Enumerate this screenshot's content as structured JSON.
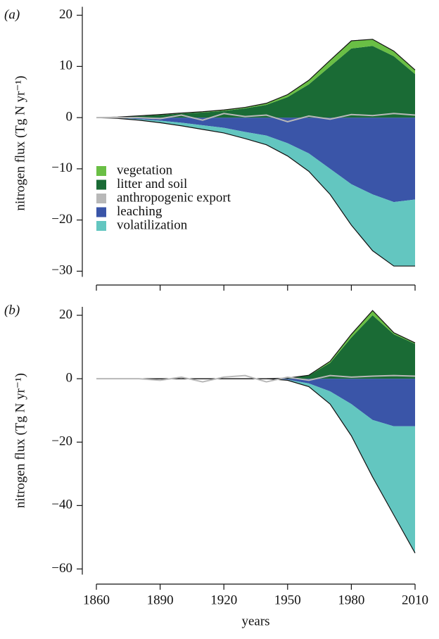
{
  "chart_data": [
    {
      "type": "stacked-area",
      "panel_label": "(a)",
      "ylabel": "nitrogen flux (Tg N yr⁻¹)",
      "x": [
        1860,
        1870,
        1880,
        1890,
        1900,
        1910,
        1920,
        1930,
        1940,
        1950,
        1960,
        1970,
        1980,
        1990,
        2000,
        2010
      ],
      "xlim": [
        1860,
        2010
      ],
      "xticks": [
        1860,
        1890,
        1920,
        1950,
        1980,
        2010
      ],
      "ylim": [
        -31.6,
        21.6
      ],
      "yticks": [
        {
          "value": -30,
          "label": "−30"
        },
        {
          "value": -20,
          "label": "−20"
        },
        {
          "value": -10,
          "label": "−10"
        },
        0,
        10,
        20
      ],
      "legend": true,
      "series": [
        {
          "name": "vegetation",
          "color": "#6abf45",
          "stack": "pos",
          "values": [
            0,
            0,
            0.05,
            0.1,
            0.1,
            0.15,
            0.2,
            0.2,
            0.3,
            0.5,
            0.8,
            1.2,
            1.5,
            1.3,
            1.0,
            0.8
          ]
        },
        {
          "name": "litter and soil",
          "color": "#1a6b35",
          "stack": "pos",
          "values": [
            0,
            0.1,
            0.3,
            0.5,
            0.8,
            1.0,
            1.3,
            1.8,
            2.5,
            4,
            6.5,
            10,
            13.5,
            14,
            12,
            8.5
          ]
        },
        {
          "name": "anthropogenic export",
          "color": "#b8b8b8",
          "stack": "line",
          "values": [
            0,
            0,
            0,
            -0.2,
            0.5,
            -0.5,
            0.8,
            0.2,
            0.5,
            -0.8,
            0.3,
            -0.3,
            0.6,
            0.4,
            0.8,
            0.5
          ]
        },
        {
          "name": "leaching",
          "color": "#3a55a8",
          "stack": "neg",
          "values": [
            0,
            -0.1,
            -0.3,
            -0.6,
            -1,
            -1.5,
            -2,
            -2.8,
            -3.5,
            -5,
            -7,
            -10,
            -13,
            -15,
            -16.5,
            -16
          ]
        },
        {
          "name": "volatilization",
          "color": "#63c6c0",
          "stack": "neg",
          "values": [
            0,
            -0.05,
            -0.2,
            -0.4,
            -0.6,
            -0.8,
            -1,
            -1.3,
            -1.8,
            -2.5,
            -3.5,
            -5,
            -8,
            -11,
            -12.5,
            -13
          ]
        }
      ]
    },
    {
      "type": "stacked-area",
      "panel_label": "(b)",
      "ylabel": "nitrogen flux (Tg N yr⁻¹)",
      "xlabel": "years",
      "x": [
        1860,
        1870,
        1880,
        1890,
        1900,
        1910,
        1920,
        1930,
        1940,
        1950,
        1960,
        1970,
        1980,
        1990,
        2000,
        2010
      ],
      "xlim": [
        1860,
        2010
      ],
      "xticks": [
        1860,
        1890,
        1920,
        1950,
        1980,
        2010
      ],
      "ylim": [
        -63,
        24
      ],
      "yticks": [
        {
          "value": -60,
          "label": "−60"
        },
        {
          "value": -40,
          "label": "−40"
        },
        {
          "value": -20,
          "label": "−20"
        },
        0,
        20
      ],
      "legend": false,
      "series": [
        {
          "color": "#6abf45",
          "stack": "pos",
          "values": [
            0,
            0,
            0,
            0,
            0,
            0,
            0,
            0,
            0,
            0,
            0.1,
            0.5,
            1,
            1.5,
            0.5,
            0.3
          ]
        },
        {
          "color": "#1a6b35",
          "stack": "pos",
          "values": [
            0,
            0,
            0,
            0,
            0,
            0,
            0,
            0,
            0,
            0.2,
            1,
            5,
            13,
            20,
            14,
            11
          ]
        },
        {
          "color": "#b8b8b8",
          "stack": "line",
          "values": [
            0,
            0,
            0,
            -0.5,
            0.5,
            -1,
            0.5,
            1,
            -1,
            0.5,
            -0.5,
            1,
            0.5,
            0.8,
            1,
            0.8
          ]
        },
        {
          "color": "#3a55a8",
          "stack": "neg",
          "values": [
            0,
            0,
            0,
            0,
            0,
            0,
            0,
            0,
            0,
            -0.3,
            -1.5,
            -4,
            -8,
            -13,
            -15,
            -15
          ]
        },
        {
          "color": "#63c6c0",
          "stack": "neg",
          "values": [
            0,
            0,
            0,
            0,
            0,
            0,
            0,
            0,
            0,
            -0.2,
            -1,
            -4,
            -10,
            -18,
            -28,
            -40
          ]
        }
      ]
    }
  ]
}
